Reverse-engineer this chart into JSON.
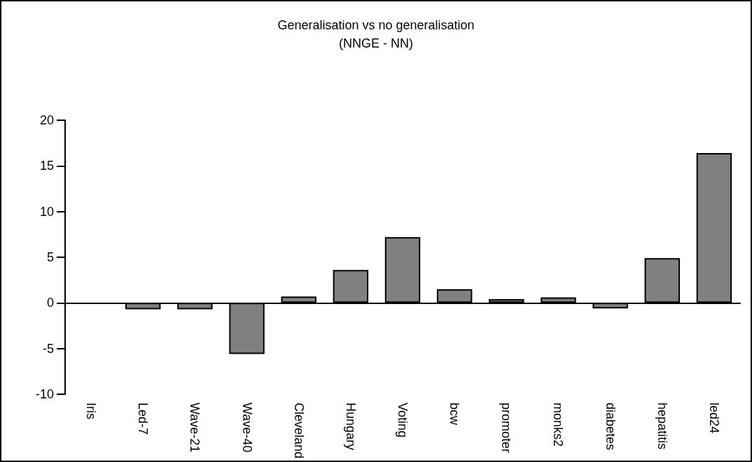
{
  "chart_data": {
    "type": "bar",
    "title": "Generalisation vs no generalisation",
    "subtitle": "(NNGE - NN)",
    "categories": [
      "Iris",
      "Led-7",
      "Wave-21",
      "Wave-40",
      "Cleveland",
      "Hungary",
      "Voting",
      "bcw",
      "promoter",
      "monks2",
      "diabetes",
      "hepatitis",
      "led24"
    ],
    "values": [
      0,
      -0.7,
      -0.7,
      -5.6,
      0.7,
      3.6,
      7.2,
      1.5,
      0.4,
      0.6,
      -0.6,
      4.9,
      16.4
    ],
    "color": "#808080",
    "ylim": [
      -10,
      20
    ],
    "yticks": [
      -10,
      -5,
      0,
      5,
      10,
      15,
      20
    ]
  }
}
